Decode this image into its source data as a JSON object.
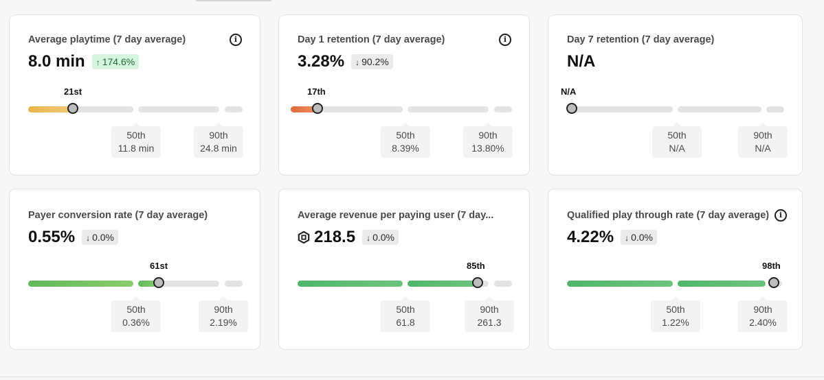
{
  "cards": [
    {
      "title": "Average playtime (7 day average)",
      "info_icon": "info-icon",
      "value": "8.0 min",
      "change": "174.6%",
      "change_direction": "up",
      "rank": "21st",
      "percentile": 21,
      "fill_color": "#e9b54a",
      "fill_color_2": "#f1c97a",
      "p50_label": "50th",
      "p50_value": "11.8 min",
      "p90_label": "90th",
      "p90_value": "24.8 min"
    },
    {
      "title": "Day 1 retention (7 day average)",
      "info_icon": "info-icon",
      "value": "3.28%",
      "change": "90.2%",
      "change_direction": "down",
      "rank": "17th",
      "percentile": 17,
      "fill_color": "#e06b3a",
      "fill_color_2": "#ec8f63",
      "p50_label": "50th",
      "p50_value": "8.39%",
      "p90_label": "90th",
      "p90_value": "13.80%"
    },
    {
      "title": "Day 7 retention (7 day average)",
      "value": "N/A",
      "rank": "N/A",
      "percentile": 0,
      "fill_color": "#e3e3e3",
      "fill_color_2": "#e3e3e3",
      "p50_label": "50th",
      "p50_value": "N/A",
      "p90_label": "90th",
      "p90_value": "N/A"
    },
    {
      "title": "Payer conversion rate (7 day average)",
      "value": "0.55%",
      "change": "0.0%",
      "change_direction": "down",
      "rank": "61st",
      "percentile": 61,
      "fill_color": "#5fb85a",
      "fill_color_2": "#8ccc6b",
      "p50_label": "50th",
      "p50_value": "0.36%",
      "p90_label": "90th",
      "p90_value": "2.19%"
    },
    {
      "title": "Average revenue per paying user (7 day...",
      "currency_icon": "robux-icon",
      "value": "218.5",
      "change": "0.0%",
      "change_direction": "down",
      "rank": "85th",
      "percentile": 85,
      "fill_color": "#4fb66a",
      "fill_color_2": "#6cc47b",
      "p50_label": "50th",
      "p50_value": "61.8",
      "p90_label": "90th",
      "p90_value": "261.3"
    },
    {
      "title": "Qualified play through rate (7 day average)",
      "info_icon": "info-icon",
      "value": "4.22%",
      "change": "0.0%",
      "change_direction": "down",
      "rank": "98th",
      "percentile": 98,
      "fill_color": "#4fb66a",
      "fill_color_2": "#6cc47b",
      "p50_label": "50th",
      "p50_value": "1.22%",
      "p90_label": "90th",
      "p90_value": "2.40%"
    }
  ]
}
